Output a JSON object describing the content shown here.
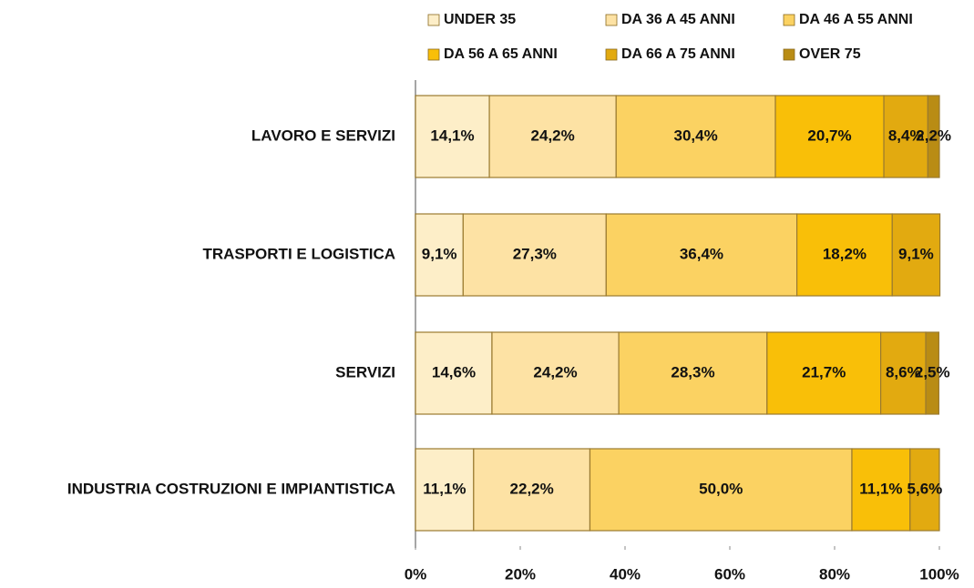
{
  "chart_data": {
    "type": "stacked-bar-horizontal",
    "categories": [
      "LAVORO E SERVIZI",
      "TRASPORTI E LOGISTICA",
      "SERVIZI",
      "INDUSTRIA COSTRUZIONI E IMPIANTISTICA"
    ],
    "series": [
      {
        "name": "UNDER 35",
        "color": "#fdeec8",
        "values": [
          14.1,
          9.1,
          14.6,
          11.1
        ],
        "value_labels": [
          "14,1%",
          "9,1%",
          "14,6%",
          "11,1%"
        ]
      },
      {
        "name": "DA 36 A 45 ANNI",
        "color": "#fde2a4",
        "values": [
          24.2,
          27.3,
          24.2,
          22.2
        ],
        "value_labels": [
          "24,2%",
          "27,3%",
          "24,2%",
          "22,2%"
        ]
      },
      {
        "name": "DA 46 A 55 ANNI",
        "color": "#fbd262",
        "values": [
          30.4,
          36.4,
          28.3,
          50.0
        ],
        "value_labels": [
          "30,4%",
          "36,4%",
          "28,3%",
          "50,0%"
        ]
      },
      {
        "name": "DA 56 A  65 ANNI",
        "color": "#f9bf08",
        "values": [
          20.7,
          18.2,
          21.7,
          11.1
        ],
        "value_labels": [
          "20,7%",
          "18,2%",
          "21,7%",
          "11,1%"
        ]
      },
      {
        "name": "DA 66 A 75 ANNI",
        "color": "#e2aa10",
        "values": [
          8.4,
          9.1,
          8.6,
          5.6
        ],
        "value_labels": [
          "8,4%",
          "9,1%",
          "8,6%",
          "5,6%"
        ]
      },
      {
        "name": "OVER 75",
        "color": "#b98c14",
        "values": [
          2.2,
          null,
          2.5,
          null
        ],
        "value_labels": [
          "2,2%",
          null,
          "2,5%",
          null
        ]
      }
    ],
    "xlim": [
      0,
      100
    ],
    "xticks": [
      {
        "value": 0,
        "label": "0%"
      },
      {
        "value": 20,
        "label": "20%"
      },
      {
        "value": 40,
        "label": "40%"
      },
      {
        "value": 60,
        "label": "60%"
      },
      {
        "value": 80,
        "label": "80%"
      },
      {
        "value": 100,
        "label": "100%"
      }
    ],
    "legend": "top"
  }
}
